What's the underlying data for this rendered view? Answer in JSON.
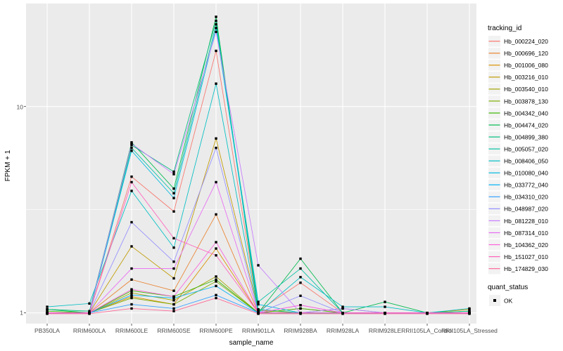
{
  "chart_data": {
    "type": "line",
    "title": "",
    "xlabel": "sample_name",
    "ylabel": "FPKM + 1",
    "y_scale": "log10",
    "ylim": [
      0.9,
      31
    ],
    "ytick_values": [
      1,
      10
    ],
    "ytick_labels": [
      "1",
      "10"
    ],
    "grid": "on",
    "legend_position": "right",
    "legend_title": "tracking_id",
    "point_shape": "filled-black-square",
    "categories": [
      "PB350LA",
      "RRIM600LA",
      "RRIM600LE",
      "RRIM600SE",
      "RRIM600PE",
      "RRIM901LA",
      "RRIM928BA",
      "RRIM928LA",
      "RRIM928LE",
      "RRII105LA_Control",
      "RRII105LA_Stressed"
    ],
    "series": [
      {
        "name": "Hb_000224_020",
        "color": "#F8766D",
        "values": [
          1.0,
          1.0,
          4.57,
          3.1,
          18.6,
          1.02,
          1.4,
          1.0,
          1.0,
          1.0,
          1.0
        ]
      },
      {
        "name": "Hb_000696_120",
        "color": "#EA8331",
        "values": [
          1.0,
          1.0,
          1.45,
          1.28,
          3.0,
          1.0,
          1.05,
          1.0,
          1.0,
          1.0,
          1.0
        ]
      },
      {
        "name": "Hb_001006_080",
        "color": "#D89000",
        "values": [
          1.0,
          1.0,
          1.2,
          1.1,
          2.05,
          1.0,
          1.0,
          1.0,
          1.0,
          1.0,
          1.04
        ]
      },
      {
        "name": "Hb_003216_010",
        "color": "#C09B00",
        "values": [
          1.0,
          1.0,
          2.1,
          1.47,
          7.0,
          1.03,
          1.0,
          1.0,
          1.0,
          1.0,
          1.0
        ]
      },
      {
        "name": "Hb_003540_010",
        "color": "#A3A500",
        "values": [
          1.0,
          1.0,
          1.25,
          1.15,
          1.5,
          1.0,
          1.0,
          1.0,
          1.0,
          1.0,
          1.0
        ]
      },
      {
        "name": "Hb_003878_130",
        "color": "#7CAE00",
        "values": [
          1.0,
          1.0,
          1.18,
          1.1,
          1.42,
          1.0,
          1.0,
          1.0,
          1.0,
          1.0,
          1.0
        ]
      },
      {
        "name": "Hb_004342_040",
        "color": "#39B600",
        "values": [
          1.02,
          1.0,
          1.28,
          1.2,
          1.45,
          1.0,
          1.05,
          1.0,
          1.0,
          1.0,
          1.0
        ]
      },
      {
        "name": "Hb_004474_020",
        "color": "#00BB4E",
        "values": [
          1.04,
          1.0,
          6.7,
          4.0,
          27.2,
          1.0,
          1.83,
          1.0,
          1.13,
          1.0,
          1.02
        ]
      },
      {
        "name": "Hb_004899_380",
        "color": "#00BF7D",
        "values": [
          1.04,
          1.02,
          6.5,
          4.83,
          26.0,
          1.04,
          1.0,
          1.05,
          1.0,
          1.0,
          1.02
        ]
      },
      {
        "name": "Hb_005057_020",
        "color": "#00C1A3",
        "values": [
          1.0,
          1.0,
          6.3,
          3.8,
          25.0,
          1.13,
          1.64,
          1.0,
          1.0,
          1.0,
          1.0
        ]
      },
      {
        "name": "Hb_008406_050",
        "color": "#00BFC4",
        "values": [
          1.07,
          1.11,
          3.9,
          2.07,
          12.9,
          1.0,
          1.49,
          1.07,
          1.07,
          1.0,
          1.05
        ]
      },
      {
        "name": "Hb_010080_040",
        "color": "#00BAE0",
        "values": [
          1.0,
          1.0,
          6.1,
          3.6,
          24.0,
          1.1,
          1.0,
          1.0,
          1.0,
          1.0,
          1.0
        ]
      },
      {
        "name": "Hb_033772_040",
        "color": "#00B0F6",
        "values": [
          1.0,
          1.0,
          1.22,
          1.18,
          1.35,
          1.0,
          1.0,
          1.0,
          1.0,
          1.0,
          1.0
        ]
      },
      {
        "name": "Hb_034310_020",
        "color": "#35A2FF",
        "values": [
          1.0,
          1.0,
          1.1,
          1.05,
          1.22,
          1.0,
          1.0,
          1.0,
          1.0,
          1.0,
          1.0
        ]
      },
      {
        "name": "Hb_048987_020",
        "color": "#9590FF",
        "values": [
          1.0,
          1.0,
          2.75,
          1.77,
          6.3,
          1.0,
          1.21,
          1.0,
          1.0,
          1.0,
          1.0
        ]
      },
      {
        "name": "Hb_081228_010",
        "color": "#C77CFF",
        "values": [
          1.0,
          1.0,
          6.6,
          4.7,
          23.0,
          1.7,
          1.0,
          1.05,
          1.0,
          1.0,
          1.0
        ]
      },
      {
        "name": "Hb_087314_010",
        "color": "#E76BF3",
        "values": [
          1.0,
          1.0,
          1.64,
          1.64,
          4.3,
          1.0,
          1.09,
          1.0,
          1.0,
          1.0,
          1.0
        ]
      },
      {
        "name": "Hb_104362_020",
        "color": "#FA62DB",
        "values": [
          1.0,
          1.0,
          1.3,
          1.2,
          2.2,
          1.0,
          1.09,
          1.0,
          1.0,
          1.0,
          1.0
        ]
      },
      {
        "name": "Hb_151027_010",
        "color": "#FF62BC",
        "values": [
          1.0,
          1.0,
          4.3,
          2.3,
          1.9,
          1.0,
          1.0,
          1.0,
          1.0,
          1.0,
          1.0
        ]
      },
      {
        "name": "Hb_174829_030",
        "color": "#FF6A98",
        "values": [
          0.99,
          0.99,
          1.05,
          1.02,
          1.18,
          0.99,
          0.99,
          0.99,
          0.99,
          0.99,
          0.99
        ]
      }
    ],
    "quant_legend": {
      "title": "quant_status",
      "items": [
        "OK"
      ]
    }
  },
  "style_colors": {
    "panel_background": "#EBEBEB",
    "grid_line": "#FFFFFF",
    "tick_text": "#4d4d4d",
    "legend_key_background": "#F2F2F2",
    "point_color": "#000000"
  }
}
